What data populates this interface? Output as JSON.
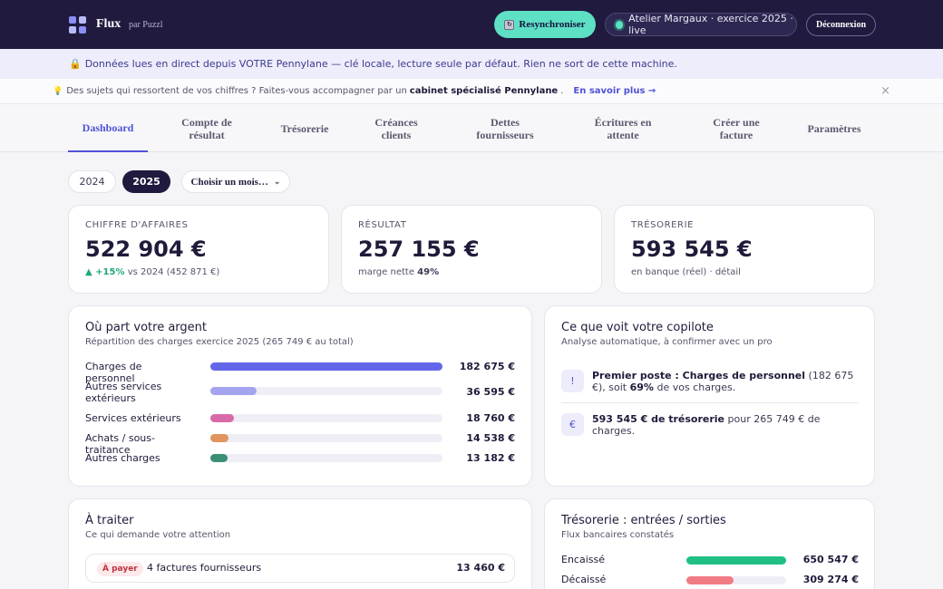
{
  "header": {
    "brand": "Flux",
    "brand_sub": "par Puzzl",
    "resync_label": "Resynchroniser",
    "company_label": "Atelier Margaux · exercice 2025 · live",
    "logout_label": "Déconnexion"
  },
  "banner": {
    "text": "Données lues en direct depuis VOTRE Pennylane — clé locale, lecture seule par défaut. Rien ne sort de cette machine."
  },
  "promo": {
    "text_before": "Des sujets qui ressortent de vos chiffres ? Faites-vous accompagner par un",
    "text_bold": "cabinet spécialisé Pennylane",
    "text_after": ".",
    "link": "En savoir plus →",
    "close": "×"
  },
  "tabs": [
    {
      "label": "Dashboard"
    },
    {
      "label": "Compte de résultat"
    },
    {
      "label": "Trésorerie"
    },
    {
      "label": "Créances clients"
    },
    {
      "label": "Dettes fournisseurs"
    },
    {
      "label": "Écritures en attente"
    },
    {
      "label": "Créer une facture"
    },
    {
      "label": "Paramètres"
    }
  ],
  "filters": {
    "year_2024": "2024",
    "year_2025": "2025",
    "month_placeholder": "Choisir un mois…",
    "selected_year": "2025"
  },
  "kpis": {
    "revenue": {
      "label": "CHIFFRE D'AFFAIRES",
      "value": "522 904 €",
      "delta": "▲ +15%",
      "compare": "vs 2024 (452 871 €)"
    },
    "result": {
      "label": "RÉSULTAT",
      "value": "257 155 €",
      "sub_text": "marge nette",
      "sub_bold": "49%"
    },
    "treasury": {
      "label": "TRÉSORERIE",
      "value": "593 545 €",
      "sub_text": "en banque (réel) · détail"
    }
  },
  "expenses": {
    "title": "Où part votre argent",
    "subtitle": "Répartition des charges exercice 2025 (265 749 € au total)",
    "items": [
      {
        "label": "Charges de personnel",
        "amount": "182 675 €",
        "share": 0.687,
        "color": "#6366e8"
      },
      {
        "label": "Autres services extérieurs",
        "amount": "36 595 €",
        "share": 0.138,
        "color": "#a5a4ef"
      },
      {
        "label": "Services extérieurs",
        "amount": "18 760 €",
        "share": 0.071,
        "color": "#d96aa8"
      },
      {
        "label": "Achats / sous-traitance",
        "amount": "14 538 €",
        "share": 0.055,
        "color": "#e2945e"
      },
      {
        "label": "Autres charges",
        "amount": "13 182 €",
        "share": 0.05,
        "color": "#3a8f77"
      }
    ]
  },
  "copilot": {
    "title": "Ce que voit votre copilote",
    "subtitle": "Analyse automatique, à confirmer avec un pro",
    "insights": [
      {
        "icon": "!",
        "bold1": "Premier poste : Charges de personnel",
        "text1": " (182 675 €), soit ",
        "bold2": "69%",
        "text2": " de vos charges."
      },
      {
        "icon": "€",
        "bold1": "593 545 € de trésorerie",
        "text1": " pour 265 749 € de charges.",
        "bold2": "",
        "text2": ""
      }
    ]
  },
  "todo": {
    "title": "À traiter",
    "subtitle": "Ce qui demande votre attention",
    "items": [
      {
        "badge": "À payer",
        "text": "4 factures fournisseurs",
        "amount": "13 460 €"
      }
    ]
  },
  "cashflow": {
    "title": "Trésorerie : entrées / sorties",
    "subtitle": "Flux bancaires constatés",
    "items": [
      {
        "label": "Encaissé",
        "amount": "650 547 €",
        "share": 1.0,
        "color": "#1fbf86"
      },
      {
        "label": "Décaissé",
        "amount": "309 274 €",
        "share": 0.475,
        "color": "#f07b82"
      }
    ]
  }
}
